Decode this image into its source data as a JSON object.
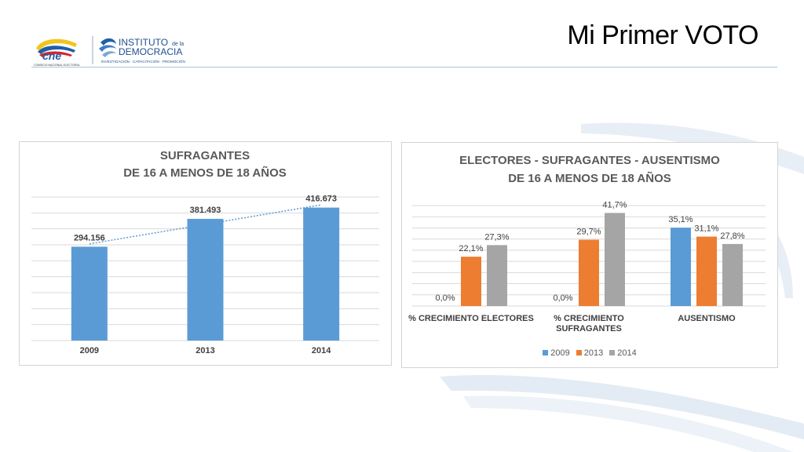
{
  "slide": {
    "title": "Mi Primer VOTO"
  },
  "logos": {
    "cne": {
      "text": "cne",
      "subtext": "CONSEJO NACIONAL ELECTORAL"
    },
    "instituto": {
      "line1": "INSTITUTO",
      "line1_small": "de la",
      "line2": "DEMOCRACIA",
      "tagline": "INVESTIGACIÓN · CAPACITACIÓN · PROMOCIÓN"
    }
  },
  "colors": {
    "series_2009": "#5b9bd5",
    "series_2013": "#ed7d31",
    "series_2014": "#a5a5a5",
    "accent": "#5b9bd5"
  },
  "chart_data": [
    {
      "type": "bar",
      "title_lines": [
        "SUFRAGANTES",
        "DE 16 A MENOS DE 18 AÑOS"
      ],
      "categories": [
        "2009",
        "2013",
        "2014"
      ],
      "values": [
        294156,
        381493,
        416673
      ],
      "value_labels": [
        "294.156",
        "381.493",
        "416.673"
      ],
      "ylim": [
        0,
        450000
      ],
      "grid": true,
      "trendline": "linear, dotted"
    },
    {
      "type": "bar",
      "title_lines": [
        "ELECTORES - SUFRAGANTES - AUSENTISMO",
        "DE 16 A MENOS DE 18 AÑOS"
      ],
      "categories": [
        "% CRECIMIENTO ELECTORES",
        "% CRECIMIENTO SUFRAGANTES",
        "AUSENTISMO"
      ],
      "category_lines": [
        [
          "% CRECIMIENTO ELECTORES"
        ],
        [
          "% CRECIMIENTO",
          "SUFRAGANTES"
        ],
        [
          "AUSENTISMO"
        ]
      ],
      "series": [
        {
          "name": "2009",
          "values": [
            0.0,
            0.0,
            35.1
          ],
          "labels": [
            "0,0%",
            "0,0%",
            "35,1%"
          ]
        },
        {
          "name": "2013",
          "values": [
            22.1,
            29.7,
            31.1
          ],
          "labels": [
            "22,1%",
            "29,7%",
            "31,1%"
          ]
        },
        {
          "name": "2014",
          "values": [
            27.3,
            41.7,
            27.8
          ],
          "labels": [
            "27,3%",
            "41,7%",
            "27,8%"
          ]
        }
      ],
      "ylim": [
        0,
        45
      ],
      "grid": true,
      "legend": "bottom"
    }
  ]
}
